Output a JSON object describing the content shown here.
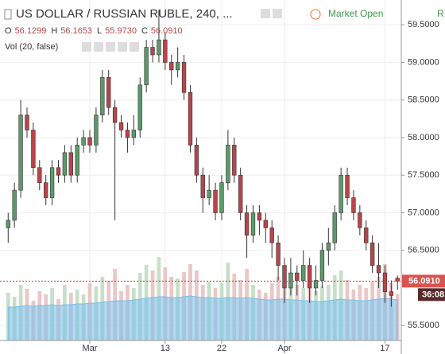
{
  "chart_data": {
    "type": "candlestick",
    "title": "US DOLLAR / RUSSIAN RUBLE, 240, ...",
    "status": "Market Open",
    "status_letter": "R",
    "ohlc_legend": [
      {
        "label": "O",
        "value": "56.1299"
      },
      {
        "label": "H",
        "value": "56.1653"
      },
      {
        "label": "L",
        "value": "55.9730"
      },
      {
        "label": "C",
        "value": "56.0910"
      }
    ],
    "volume_label": "Vol (20, false)",
    "x": [
      0,
      1,
      2,
      3,
      4,
      5,
      6,
      7,
      8,
      9,
      10,
      11,
      12,
      13,
      14,
      15,
      16,
      17,
      18,
      19,
      20,
      21,
      22,
      23,
      24,
      25,
      26,
      27,
      28,
      29,
      30,
      31,
      32,
      33,
      34,
      35,
      36,
      37,
      38,
      39,
      40,
      41,
      42,
      43,
      44,
      45,
      46,
      47,
      48,
      49,
      50,
      51,
      52,
      53,
      54,
      55,
      56,
      57,
      58,
      59,
      60,
      61,
      62
    ],
    "open": [
      56.8,
      56.9,
      57.3,
      58.3,
      58.1,
      57.6,
      57.4,
      57.2,
      57.6,
      57.5,
      57.8,
      57.5,
      57.9,
      58.0,
      57.9,
      58.3,
      58.8,
      58.4,
      58.2,
      58.1,
      58.0,
      58.1,
      58.7,
      59.2,
      59.1,
      59.3,
      59.0,
      58.9,
      59.0,
      58.6,
      57.9,
      57.5,
      57.2,
      57.3,
      57.0,
      57.4,
      57.9,
      57.5,
      57.0,
      56.7,
      57.0,
      56.9,
      56.8,
      56.6,
      56.3,
      56.0,
      56.2,
      56.1,
      56.3,
      56.0,
      56.1,
      56.5,
      56.6,
      57.0,
      57.5,
      57.2,
      57.0,
      56.8,
      56.6,
      56.3,
      56.2,
      55.95,
      56.1299
    ],
    "high": [
      57.0,
      57.4,
      58.5,
      58.4,
      58.2,
      57.7,
      57.5,
      57.7,
      57.7,
      57.9,
      57.9,
      58.0,
      58.1,
      58.1,
      58.4,
      58.9,
      58.9,
      58.5,
      58.3,
      58.2,
      58.3,
      58.8,
      59.3,
      59.3,
      59.7,
      59.4,
      59.1,
      59.2,
      59.1,
      58.7,
      58.0,
      57.6,
      57.5,
      57.4,
      57.5,
      58.1,
      58.0,
      57.6,
      57.1,
      57.1,
      57.1,
      57.0,
      56.9,
      56.7,
      56.4,
      56.4,
      56.3,
      56.5,
      56.4,
      56.3,
      56.6,
      56.8,
      57.1,
      57.6,
      57.6,
      57.3,
      57.1,
      56.9,
      56.7,
      56.6,
      56.3,
      56.1,
      56.1653
    ],
    "low": [
      56.6,
      56.8,
      57.2,
      58.0,
      57.5,
      57.3,
      57.1,
      57.1,
      57.4,
      57.4,
      57.4,
      57.4,
      57.8,
      57.8,
      57.8,
      58.2,
      58.3,
      56.9,
      58.0,
      57.8,
      57.9,
      58.0,
      58.6,
      59.0,
      59.0,
      58.9,
      58.7,
      58.8,
      58.5,
      57.8,
      57.4,
      57.0,
      57.1,
      56.9,
      56.9,
      57.3,
      57.4,
      56.9,
      56.4,
      56.6,
      56.7,
      56.6,
      56.4,
      56.1,
      55.8,
      55.9,
      55.9,
      56.0,
      55.8,
      55.9,
      56.0,
      56.3,
      56.5,
      56.9,
      57.1,
      56.9,
      56.7,
      56.5,
      56.2,
      56.0,
      55.8,
      55.75,
      55.973
    ],
    "close": [
      56.9,
      57.3,
      58.3,
      58.1,
      57.6,
      57.4,
      57.2,
      57.6,
      57.5,
      57.8,
      57.5,
      57.9,
      58.0,
      57.9,
      58.3,
      58.8,
      58.4,
      58.2,
      58.1,
      58.0,
      58.1,
      58.7,
      59.2,
      59.1,
      59.3,
      59.0,
      58.9,
      59.0,
      58.6,
      57.9,
      57.5,
      57.2,
      57.3,
      57.0,
      57.4,
      57.9,
      57.5,
      57.0,
      56.7,
      57.0,
      56.9,
      56.8,
      56.6,
      56.3,
      56.0,
      56.2,
      56.1,
      56.3,
      56.0,
      56.1,
      56.5,
      56.6,
      57.0,
      57.5,
      57.2,
      57.0,
      56.8,
      56.6,
      56.3,
      56.2,
      55.95,
      55.9,
      56.091
    ],
    "volume": [
      60,
      55,
      70,
      65,
      50,
      62,
      58,
      66,
      52,
      70,
      60,
      64,
      58,
      72,
      68,
      80,
      75,
      90,
      62,
      70,
      66,
      85,
      95,
      88,
      105,
      92,
      80,
      78,
      86,
      96,
      88,
      70,
      74,
      66,
      72,
      98,
      84,
      76,
      90,
      70,
      64,
      60,
      72,
      80,
      85,
      76,
      70,
      66,
      74,
      62,
      68,
      70,
      82,
      88,
      76,
      64,
      70,
      66,
      74,
      80,
      96,
      72,
      58
    ],
    "volume_ma": [
      42,
      42,
      43,
      44,
      43,
      44,
      44,
      45,
      44,
      45,
      45,
      46,
      46,
      47,
      47,
      48,
      49,
      50,
      50,
      50,
      51,
      52,
      53,
      54,
      55,
      55,
      54,
      54,
      55,
      56,
      55,
      54,
      54,
      53,
      53,
      54,
      54,
      53,
      54,
      53,
      52,
      51,
      51,
      52,
      52,
      51,
      51,
      50,
      50,
      49,
      49,
      50,
      51,
      52,
      51,
      51,
      50,
      50,
      51,
      52,
      53,
      52,
      51
    ],
    "up_color": "#5b9a68",
    "down_color": "#b7464b",
    "vol_up_color": "#c7dfc9",
    "vol_down_color": "#ebc7c7",
    "vol_ma_color": "#7cc0ea",
    "xlim": [
      -1.3,
      62.6
    ],
    "xticks": [
      {
        "value": 13,
        "label": "Mar"
      },
      {
        "value": 25,
        "label": "13"
      },
      {
        "value": 34,
        "label": "22"
      },
      {
        "value": 44,
        "label": "Apr"
      },
      {
        "value": 60,
        "label": "17"
      }
    ],
    "ylim": [
      55.28,
      59.83
    ],
    "yticks": [
      {
        "value": 55.5,
        "label": "55.5000"
      },
      {
        "value": 56.5,
        "label": "56.5000"
      },
      {
        "value": 57,
        "label": "57.0000"
      },
      {
        "value": 57.5,
        "label": "57.5000"
      },
      {
        "value": 58,
        "label": "58.0000"
      },
      {
        "value": 58.5,
        "label": "58.5000"
      },
      {
        "value": 59,
        "label": "59.0000"
      },
      {
        "value": 59.5,
        "label": "59.5000"
      }
    ],
    "vlim": [
      0,
      400
    ],
    "grid": true,
    "last_price": {
      "value": 56.091,
      "label": "56.0910"
    },
    "countdown": "36:08"
  }
}
